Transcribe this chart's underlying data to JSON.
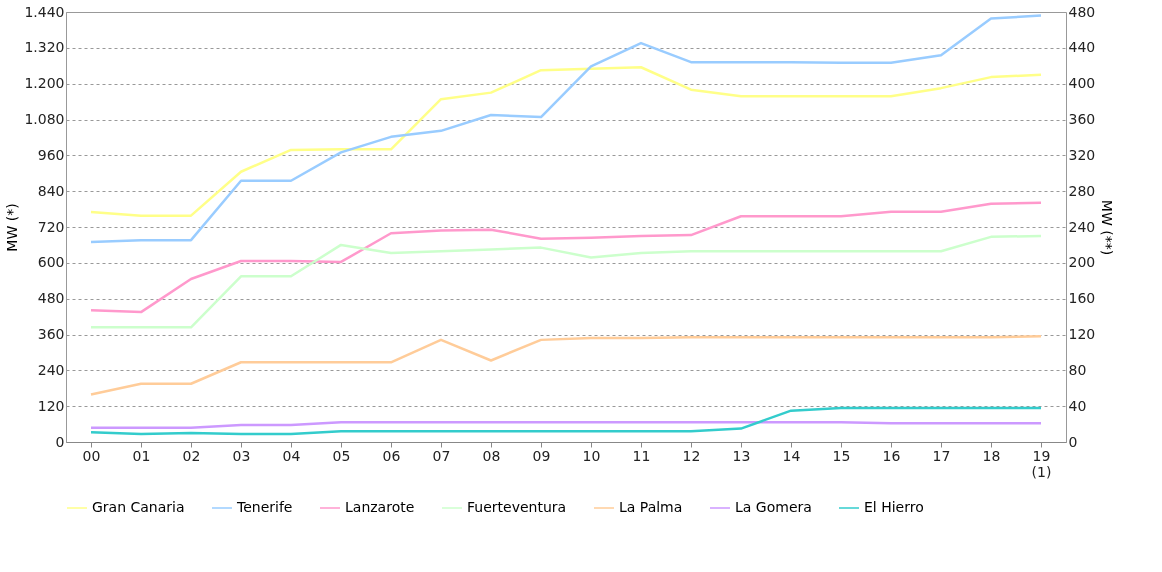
{
  "chart_data": {
    "type": "line",
    "xlabel": null,
    "ylabel": "MW (*)",
    "y2label": "MW (**)",
    "categories": [
      "00",
      "01",
      "02",
      "03",
      "04",
      "05",
      "06",
      "07",
      "08",
      "09",
      "10",
      "11",
      "12",
      "13",
      "14",
      "15",
      "16",
      "17",
      "18",
      "19\n(1)"
    ],
    "series": [
      {
        "name": "Gran Canaria",
        "color": "#ffff88",
        "values": [
          770,
          758,
          758,
          905,
          978,
          980,
          980,
          1148,
          1170,
          1245,
          1250,
          1255,
          1180,
          1158,
          1158,
          1158,
          1158,
          1185,
          1222,
          1230
        ]
      },
      {
        "name": "Tenerife",
        "color": "#99ccff",
        "values": [
          670,
          676,
          676,
          875,
          875,
          970,
          1022,
          1042,
          1095,
          1088,
          1258,
          1336,
          1272,
          1272,
          1272,
          1270,
          1270,
          1295,
          1418,
          1428
        ]
      },
      {
        "name": "Lanzarote",
        "color": "#ff99cc",
        "axis": "y2",
        "values": [
          147,
          145,
          182,
          202,
          202,
          201,
          233,
          236,
          237,
          227,
          228,
          230,
          231,
          252,
          252,
          252,
          257,
          257,
          266,
          267
        ]
      },
      {
        "name": "Fuerteventura",
        "color": "#ccffcc",
        "axis": "y2",
        "values": [
          128,
          128,
          128,
          185,
          185,
          220,
          211,
          213,
          215,
          217,
          206,
          211,
          213,
          213,
          213,
          213,
          213,
          213,
          229,
          230
        ]
      },
      {
        "name": "La Palma",
        "color": "#ffcc99",
        "axis": "y2",
        "values": [
          53,
          65,
          65,
          89,
          89,
          89,
          89,
          114,
          91,
          114,
          116,
          116,
          117,
          117,
          117,
          117,
          117,
          117,
          117,
          118
        ]
      },
      {
        "name": "La Gomera",
        "color": "#cc99ff",
        "axis": "y2",
        "values": [
          16,
          16,
          16,
          19,
          19,
          22,
          22,
          22,
          22,
          22,
          22,
          22,
          22,
          22,
          22,
          22,
          21,
          21,
          21,
          21
        ]
      },
      {
        "name": "El Hierro",
        "color": "#33cccc",
        "axis": "y2",
        "values": [
          11,
          9,
          10,
          9,
          9,
          12,
          12,
          12,
          12,
          12,
          12,
          12,
          12,
          15,
          35,
          38,
          38,
          38,
          38,
          38
        ]
      }
    ],
    "ylim": [
      0,
      1440
    ],
    "yticks": [
      0,
      120,
      240,
      360,
      480,
      600,
      720,
      840,
      960,
      {
        "value": 1080,
        "label": "1.080"
      },
      {
        "value": 1200,
        "label": "1.200"
      },
      {
        "value": 1320,
        "label": "1.320"
      },
      {
        "value": 1440,
        "label": "1.440"
      }
    ],
    "y2lim": [
      0,
      480
    ],
    "y2ticks": [
      0,
      40,
      80,
      120,
      160,
      200,
      240,
      280,
      320,
      360,
      400,
      440,
      480
    ],
    "grid": "y",
    "legend": "bottom",
    "marker": "none",
    "line_style": "solid"
  }
}
